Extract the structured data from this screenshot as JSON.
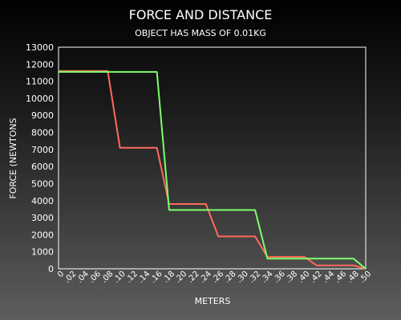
{
  "chart_data": {
    "type": "line",
    "title": "FORCE AND DISTANCE",
    "subtitle": "OBJECT HAS MASS OF 0.01KG",
    "xlabel": "METERS",
    "ylabel": "FORCE (NEWTONS",
    "ylim": [
      0,
      13000
    ],
    "yticks": [
      0,
      1000,
      2000,
      3000,
      4000,
      5000,
      6000,
      7000,
      8000,
      9000,
      10000,
      11000,
      12000,
      13000
    ],
    "categories": [
      "0",
      ".02",
      ".04",
      ".06",
      ".08",
      ".10",
      ".12",
      ".14",
      ".16",
      ".18",
      ".20",
      ".22",
      ".24",
      ".26",
      ".28",
      ".30",
      ".32",
      ".34",
      ".36",
      ".38",
      ".40",
      ".42",
      ".44",
      ".46",
      ".48",
      ".50"
    ],
    "grid": false,
    "series": [
      {
        "color": "#ff6a5c",
        "values": [
          11600,
          11600,
          11600,
          11600,
          11600,
          7100,
          7100,
          7100,
          7100,
          3800,
          3800,
          3800,
          3800,
          1900,
          1900,
          1900,
          1900,
          700,
          700,
          700,
          700,
          200,
          200,
          200,
          200,
          0
        ]
      },
      {
        "color": "#7dff6a",
        "values": [
          11550,
          11550,
          11550,
          11550,
          11550,
          11550,
          11550,
          11550,
          11550,
          3450,
          3450,
          3450,
          3450,
          3450,
          3450,
          3450,
          3450,
          600,
          600,
          600,
          600,
          600,
          600,
          600,
          600,
          0
        ]
      }
    ]
  }
}
